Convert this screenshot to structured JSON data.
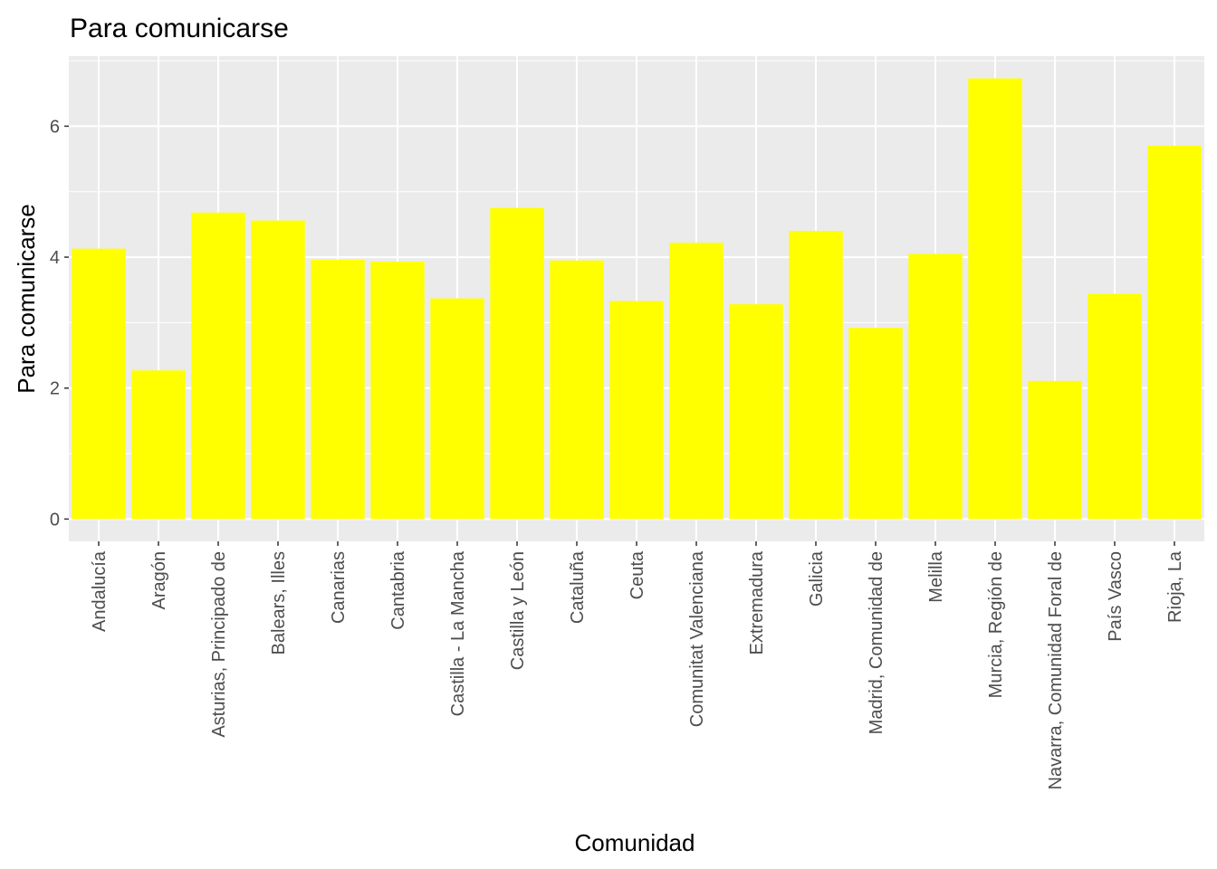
{
  "chart_data": {
    "type": "bar",
    "title": "Para comunicarse",
    "xlabel": "Comunidad",
    "ylabel": "Para comunicarse",
    "categories": [
      "Andalucía",
      "Aragón",
      "Asturias, Principado de",
      "Balears, Illes",
      "Canarias",
      "Cantabria",
      "Castilla - La Mancha",
      "Castilla y León",
      "Cataluña",
      "Ceuta",
      "Comunitat Valenciana",
      "Extremadura",
      "Galicia",
      "Madrid, Comunidad de",
      "Melilla",
      "Murcia, Región de",
      "Navarra, Comunidad Foral de",
      "País Vasco",
      "Rioja, La"
    ],
    "values": [
      4.13,
      2.27,
      4.68,
      4.56,
      3.96,
      3.93,
      3.37,
      4.75,
      3.95,
      3.33,
      4.22,
      3.28,
      4.4,
      2.92,
      4.05,
      6.73,
      2.11,
      3.44,
      5.7
    ],
    "ylim": [
      -0.34,
      7.07
    ],
    "yticks": [
      0,
      2,
      4,
      6
    ],
    "bar_color": "#FFFF00",
    "panel_background": "#EBEBEB",
    "grid_color": "#FFFFFF",
    "grid": true,
    "legend": "none"
  }
}
